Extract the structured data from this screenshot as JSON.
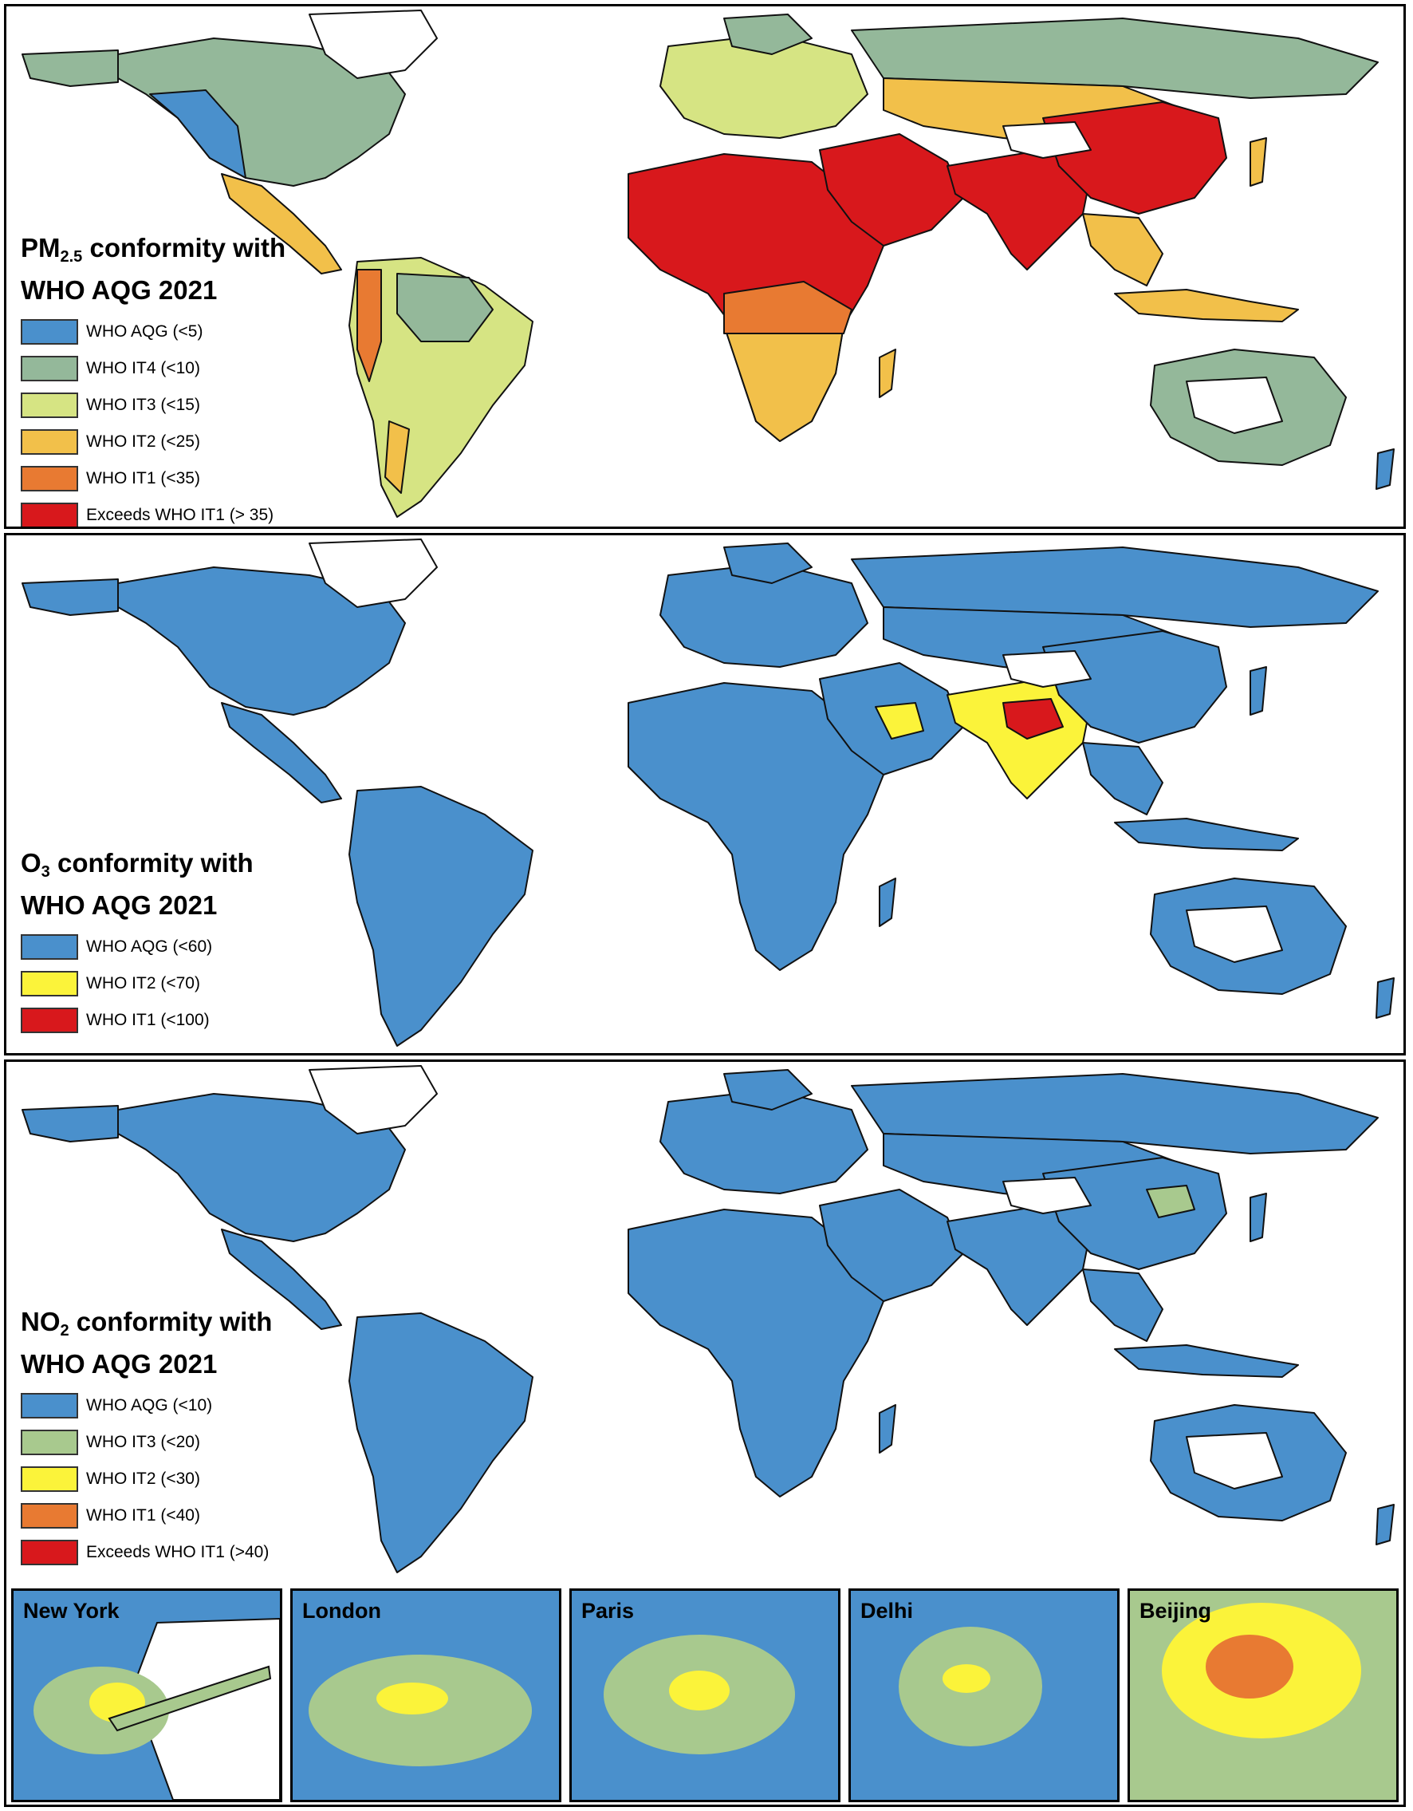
{
  "colors": {
    "ocean": "#ffffff",
    "border": "#111111",
    "blue": "#4a90cc",
    "grayGreen": "#94b89a",
    "lightYellowGreen": "#d6e483",
    "yellowOrange": "#f2c04a",
    "orange": "#e87a32",
    "red": "#d8181c",
    "yellow": "#fbf33a",
    "no2Green": "#a8c98e"
  },
  "panels": [
    {
      "id": "pm25",
      "pollutant": "PM",
      "subscript": "2.5",
      "title_rest": " conformity with",
      "title_line2": "WHO AQG 2021",
      "legend": [
        {
          "label": "WHO AQG (<5)",
          "color": "#4a90cc"
        },
        {
          "label": "WHO IT4 (<10)",
          "color": "#94b89a"
        },
        {
          "label": "WHO IT3 (<15)",
          "color": "#d6e483"
        },
        {
          "label": "WHO IT2 (<25)",
          "color": "#f2c04a"
        },
        {
          "label": "WHO IT1 (<35)",
          "color": "#e87a32"
        },
        {
          "label": "Exceeds WHO IT1 (> 35)",
          "color": "#d8181c"
        }
      ]
    },
    {
      "id": "o3",
      "pollutant": "O",
      "subscript": "3",
      "title_rest": " conformity with",
      "title_line2": "WHO AQG 2021",
      "legend": [
        {
          "label": "WHO AQG (<60)",
          "color": "#4a90cc"
        },
        {
          "label": "WHO IT2 (<70)",
          "color": "#fbf33a"
        },
        {
          "label": "WHO IT1 (<100)",
          "color": "#d8181c"
        }
      ]
    },
    {
      "id": "no2",
      "pollutant": "NO",
      "subscript": "2",
      "title_rest": " conformity with",
      "title_line2": "WHO AQG 2021",
      "legend": [
        {
          "label": "WHO AQG (<10)",
          "color": "#4a90cc"
        },
        {
          "label": "WHO IT3 (<20)",
          "color": "#a8c98e"
        },
        {
          "label": "WHO IT2 (<30)",
          "color": "#fbf33a"
        },
        {
          "label": "WHO IT1 (<40)",
          "color": "#e87a32"
        },
        {
          "label": "Exceeds WHO IT1 (>40)",
          "color": "#d8181c"
        }
      ]
    }
  ],
  "insets": [
    {
      "city": "New York"
    },
    {
      "city": "London"
    },
    {
      "city": "Paris"
    },
    {
      "city": "Delhi"
    },
    {
      "city": "Beijing"
    }
  ]
}
